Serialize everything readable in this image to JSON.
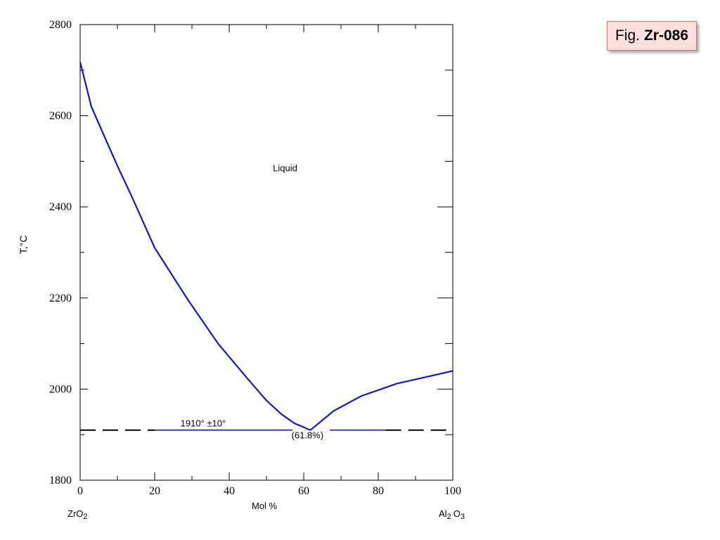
{
  "figure_label": {
    "prefix": "Fig.",
    "id": "Zr-086"
  },
  "chart_data": {
    "type": "line",
    "title": "",
    "xlabel": "Mol %",
    "ylabel": "T,°C",
    "xlim": [
      0,
      100
    ],
    "ylim": [
      1800,
      2800
    ],
    "x_ticks": [
      0,
      20,
      40,
      60,
      80,
      100
    ],
    "y_ticks": [
      1800,
      2000,
      2200,
      2400,
      2600,
      2800
    ],
    "x_minor_ticks": [
      10,
      30,
      50,
      70,
      90
    ],
    "y_minor_ticks": [
      1900,
      2100,
      2300,
      2500,
      2700
    ],
    "grid": false,
    "legend": "none",
    "end_labels": {
      "left": {
        "base": "ZrO",
        "sub": "2"
      },
      "right": {
        "base": "Al",
        "sub": "2",
        "tail": "O",
        "tail_sub": "3"
      }
    },
    "series": [
      {
        "type": "liquidus",
        "x": [
          0,
          3,
          6.5,
          10,
          14,
          20,
          29,
          37,
          45,
          50,
          54,
          57.5,
          61.8
        ],
        "y": [
          2718,
          2620,
          2555,
          2490,
          2420,
          2310,
          2195,
          2100,
          2022,
          1975,
          1945,
          1925,
          1910
        ]
      },
      {
        "type": "liquidus",
        "x": [
          61.8,
          68,
          75.5,
          85,
          92,
          100
        ],
        "y": [
          1910,
          1952,
          1985,
          2012,
          2025,
          2040
        ]
      },
      {
        "type": "eutectic-solid",
        "x": [
          20,
          57
        ],
        "y": [
          1910,
          1910
        ]
      },
      {
        "type": "eutectic-solid",
        "x": [
          67,
          82
        ],
        "y": [
          1910,
          1910
        ]
      },
      {
        "type": "eutectic-dashed",
        "x": [
          0,
          20
        ],
        "y": [
          1910,
          1910
        ]
      },
      {
        "type": "eutectic-dashed",
        "x": [
          82,
          100
        ],
        "y": [
          1910,
          1910
        ]
      }
    ],
    "annotations": {
      "phase_region": {
        "text": "Liquid",
        "x": 55,
        "y": 2478
      },
      "eutectic_temp": {
        "text": "1910° ±10°",
        "x": 33,
        "y": 1918
      },
      "eutectic_comp": {
        "text": "(61.8%)",
        "x": 61,
        "y": 1892
      }
    },
    "colors": {
      "curve": "#1515c8",
      "axes": "#000000",
      "dashed": "#000000"
    }
  }
}
